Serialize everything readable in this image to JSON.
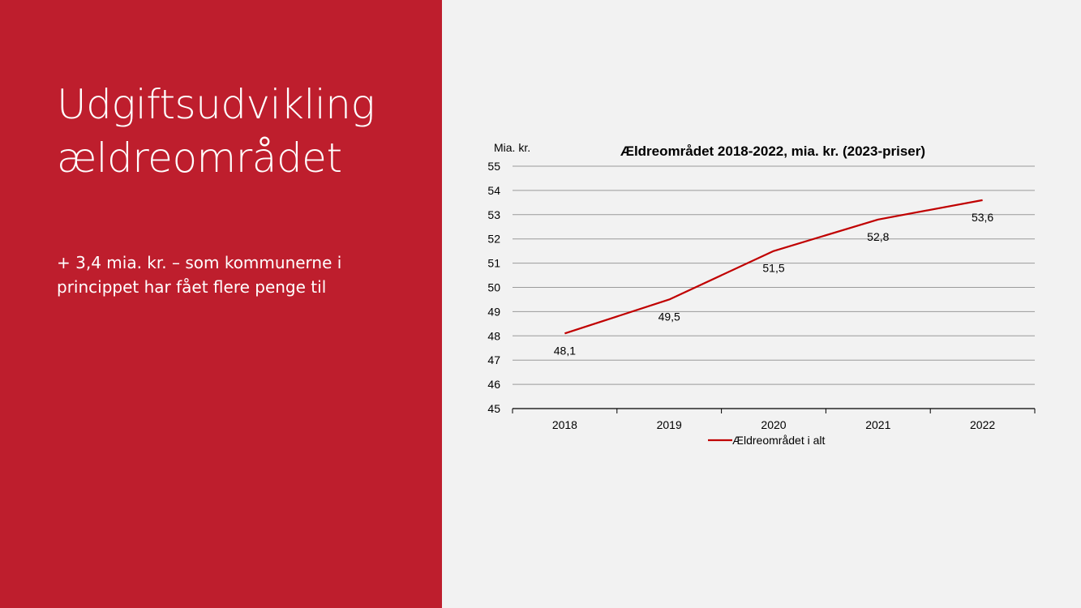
{
  "slide": {
    "title_lines": [
      "Udgiftsudvikling",
      "ældreområdet"
    ],
    "body_lines": [
      "+ 3,4 mia. kr. – som kommunerne i",
      "princippet har fået flere penge til"
    ],
    "accent_color": "#be1e2d",
    "background_color": "#f2f2f2"
  },
  "chart_data": {
    "type": "line",
    "title": "Ældreområdet 2018-2022, mia. kr. (2023-priser)",
    "ylabel": "Mia. kr.",
    "xlabel": "",
    "categories": [
      "2018",
      "2019",
      "2020",
      "2021",
      "2022"
    ],
    "series": [
      {
        "name": "Ældreområdet i alt",
        "values": [
          48.1,
          49.5,
          51.5,
          52.8,
          53.6
        ],
        "data_labels": [
          "48,1",
          "49,5",
          "51,5",
          "52,8",
          "53,6"
        ],
        "color": "#c00000"
      }
    ],
    "ylim": [
      45,
      55
    ],
    "yticks": [
      45,
      46,
      47,
      48,
      49,
      50,
      51,
      52,
      53,
      54,
      55
    ],
    "grid": true,
    "legend": "bottom"
  }
}
